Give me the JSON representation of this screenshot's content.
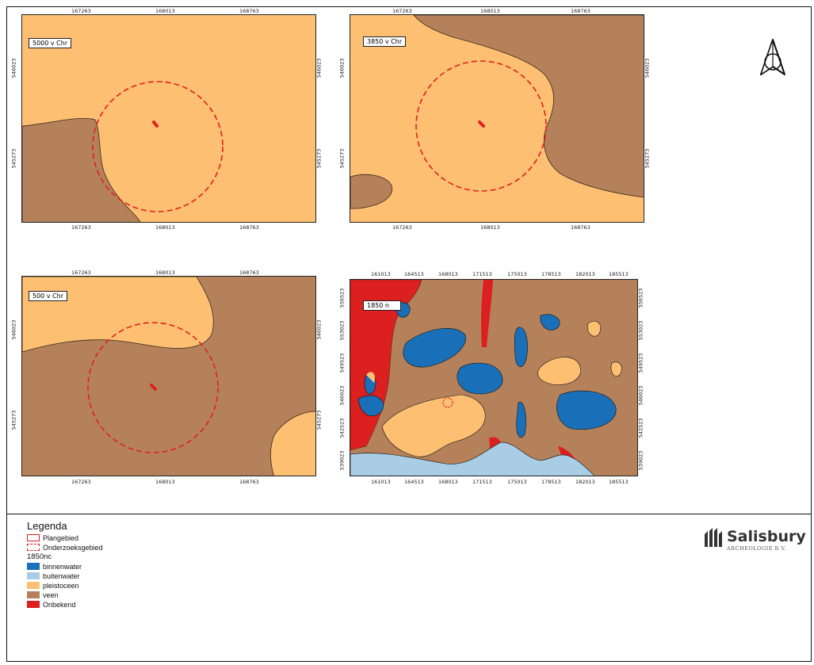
{
  "maps": [
    {
      "id": "map-5000",
      "label": "5000 v Chr",
      "top_ticks": [
        "167263",
        "168013",
        "168763"
      ],
      "bottom_ticks": [
        "167263",
        "168013",
        "168763"
      ],
      "left_ticks": [
        "546023",
        "545273"
      ],
      "right_ticks": [
        "546023",
        "545273"
      ]
    },
    {
      "id": "map-3850",
      "label": "3850 v Chr",
      "top_ticks": [
        "167263",
        "168013",
        "168763"
      ],
      "bottom_ticks": [
        "167263",
        "168013",
        "168763"
      ],
      "left_ticks": [
        "546023",
        "545273"
      ],
      "right_ticks": [
        "546023",
        "545273"
      ]
    },
    {
      "id": "map-500",
      "label": "500 v Chr",
      "top_ticks": [
        "167263",
        "168013",
        "168763"
      ],
      "bottom_ticks": [
        "167263",
        "168013",
        "168763"
      ],
      "left_ticks": [
        "546023",
        "545273"
      ],
      "right_ticks": [
        "546023",
        "545273"
      ]
    },
    {
      "id": "map-1850",
      "label": "1850 n",
      "top_ticks": [
        "161013",
        "164513",
        "168013",
        "171513",
        "175013",
        "178513",
        "182013",
        "185513"
      ],
      "bottom_ticks": [
        "161013",
        "164513",
        "168013",
        "171513",
        "175013",
        "178513",
        "182013",
        "185513"
      ],
      "left_ticks": [
        "556523",
        "553023",
        "549523",
        "546023",
        "542523",
        "539023"
      ],
      "right_ticks": [
        "556523",
        "553023",
        "549523",
        "546023",
        "542523",
        "539023"
      ]
    }
  ],
  "legend": {
    "title": "Legenda",
    "items": [
      {
        "label": "Plangebied",
        "kind": "outline",
        "color": "#e02020"
      },
      {
        "label": "Onderzoeksgebied",
        "kind": "dashed",
        "color": "#e02020"
      }
    ],
    "subtitle": "1850nc",
    "classes": [
      {
        "label": "binnenwater",
        "color": "#1a70b8"
      },
      {
        "label": "buitenwater",
        "color": "#a8cde4"
      },
      {
        "label": "pleistoceen",
        "color": "#fdbf72"
      },
      {
        "label": "veen",
        "color": "#b5815a"
      },
      {
        "label": "Onbekend",
        "color": "#dc1f1f"
      }
    ]
  },
  "logo": {
    "main": "Salisbury",
    "sub": "ARCHEOLOGIE B.V."
  },
  "north_arrow": {
    "icon": "north-arrow-icon"
  }
}
